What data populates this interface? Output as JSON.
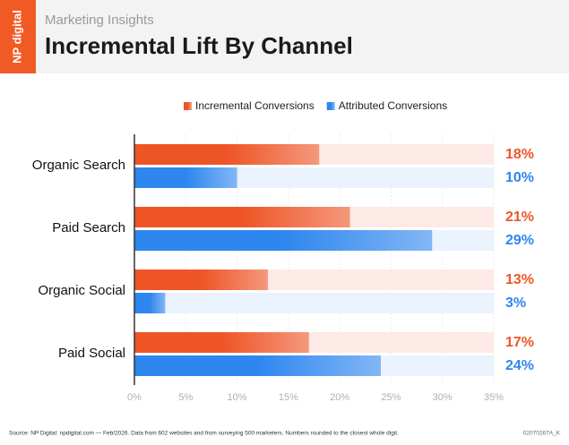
{
  "logo": "NP digital",
  "chart_data": {
    "type": "hbar",
    "subtitle": "Marketing Insights",
    "title": "Incremental Lift By Channel",
    "categories": [
      "Organic Search",
      "Paid Search",
      "Organic Social",
      "Paid Social"
    ],
    "series": [
      {
        "name": "Incremental Conversions",
        "color": "#ee5526",
        "track": "#fdeae6",
        "values": [
          18,
          21,
          13,
          17
        ],
        "value_labels": [
          "18%",
          "21%",
          "13%",
          "17%"
        ]
      },
      {
        "name": "Attributed Conversions",
        "color": "#2e86ef",
        "track": "#eaf2fd",
        "values": [
          10,
          29,
          3,
          24
        ],
        "value_labels": [
          "10%",
          "29%",
          "3%",
          "24%"
        ]
      }
    ],
    "xlim": [
      0,
      35
    ],
    "xticks": [
      {
        "value": 0,
        "label": "0%"
      },
      {
        "value": 5,
        "label": "5%"
      },
      {
        "value": 10,
        "label": "10%"
      },
      {
        "value": 15,
        "label": "15%"
      },
      {
        "value": 20,
        "label": "20%"
      },
      {
        "value": 25,
        "label": "25%"
      },
      {
        "value": 30,
        "label": "30%"
      },
      {
        "value": 35,
        "label": "35%"
      }
    ],
    "grid": true,
    "source": "Source: NP Digital: npdigital.com — Feb/2026. Data from 602 websites and from surveying 500 marketers. Numbers rounded to the closest whole digit.",
    "code": "02070267A_K"
  }
}
